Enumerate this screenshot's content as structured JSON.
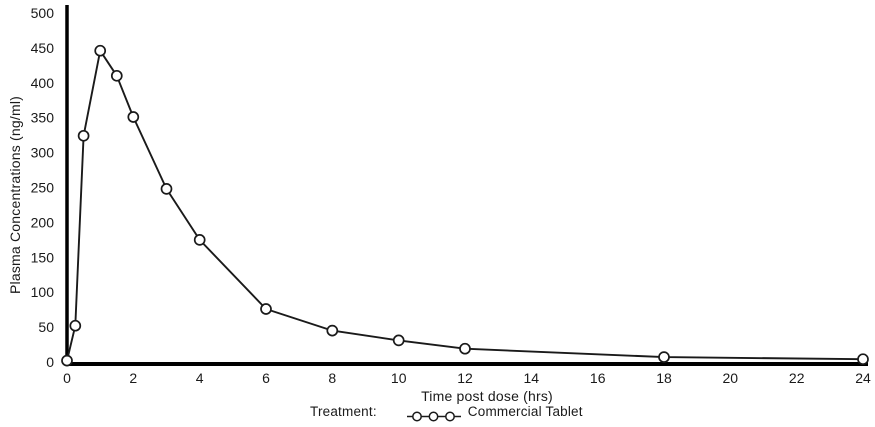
{
  "chart_data": {
    "type": "line",
    "xlabel": "Time post dose (hrs)",
    "ylabel": "Plasma Concentrations (ng/ml)",
    "xlim": [
      0,
      24
    ],
    "ylim": [
      0,
      500
    ],
    "xticks": [
      0,
      2,
      4,
      6,
      8,
      10,
      12,
      14,
      16,
      18,
      20,
      22,
      24
    ],
    "yticks": [
      0,
      50,
      100,
      150,
      200,
      250,
      300,
      350,
      400,
      450,
      500
    ],
    "grid": false,
    "legend": {
      "position": "bottom",
      "prefix": "Treatment:",
      "series_label": "Commercial Tablet",
      "marker": "open-circle"
    },
    "series": [
      {
        "name": "Commercial Tablet",
        "marker": "open-circle",
        "color": "#1a1a1a",
        "marker_fill": "#ffffff",
        "x": [
          0,
          0.25,
          0.5,
          1,
          1.5,
          2,
          3,
          4,
          6,
          8,
          10,
          12,
          18,
          24
        ],
        "y": [
          2,
          52,
          324,
          446,
          410,
          351,
          248,
          175,
          76,
          45,
          31,
          19,
          7,
          4
        ]
      }
    ]
  },
  "colors": {
    "background": "#ffffff",
    "axis": "#000000",
    "text": "#1a1a1a"
  }
}
